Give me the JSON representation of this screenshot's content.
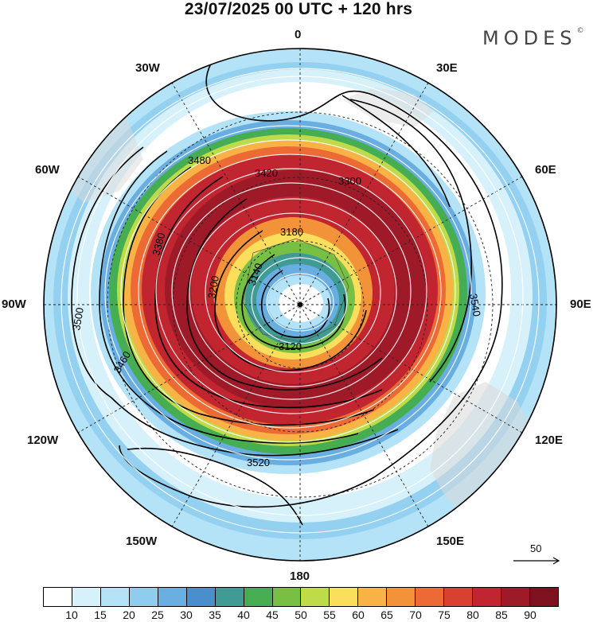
{
  "title": "23/07/2025  00 UTC  + 120 hrs",
  "brand": "MODES",
  "brand_mark": "©",
  "longitude_labels": {
    "lon_0": "0",
    "lon_30e": "30E",
    "lon_60e": "60E",
    "lon_90e": "90E",
    "lon_120e": "120E",
    "lon_150e": "150E",
    "lon_180": "180",
    "lon_150w": "150W",
    "lon_120w": "120W",
    "lon_90w": "90W",
    "lon_60w": "60W",
    "lon_30w": "30W"
  },
  "contour_labels": [
    "3420",
    "3480",
    "3500",
    "3540",
    "3520",
    "3180",
    "3200",
    "3140",
    "3120",
    "3380",
    "3460",
    "3300"
  ],
  "colorbar": {
    "colors": [
      "#ffffff",
      "#d7f1fb",
      "#b4e2f6",
      "#8ecdef",
      "#69aee1",
      "#4a8fcb",
      "#3f9b93",
      "#46ad52",
      "#78c043",
      "#c0db4a",
      "#fade5c",
      "#f8b245",
      "#f39339",
      "#ec6a33",
      "#d94030",
      "#c02530",
      "#9e1a28",
      "#7d121e"
    ],
    "labels": [
      "10",
      "15",
      "20",
      "25",
      "30",
      "35",
      "40",
      "45",
      "50",
      "55",
      "60",
      "65",
      "70",
      "75",
      "80",
      "85",
      "90"
    ]
  },
  "reference_vector": "50"
}
